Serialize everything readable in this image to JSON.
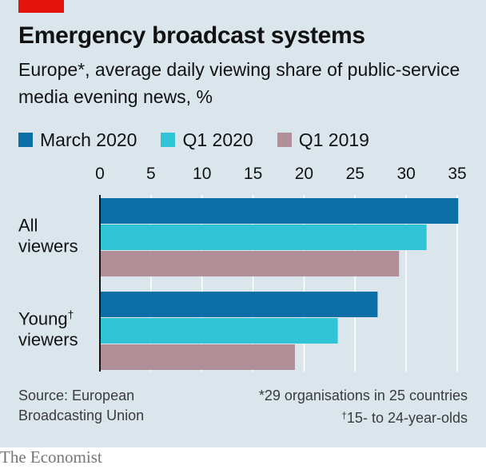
{
  "header": {
    "title": "Emergency broadcast systems",
    "subtitle": "Europe*, average daily viewing share of public-service media evening news, %"
  },
  "colors": {
    "background": "#dbe6ec",
    "accent_tag": "#e3120b",
    "gridline": "#ffffff",
    "baseline": "#121212"
  },
  "chart_data": {
    "type": "bar",
    "orientation": "horizontal",
    "categories": [
      "All viewers",
      "Young viewers"
    ],
    "category_marks": [
      "",
      "†"
    ],
    "series": [
      {
        "name": "March 2020",
        "color": "#0b6ea6",
        "values": [
          35.1,
          27.2
        ]
      },
      {
        "name": "Q1 2020",
        "color": "#31c4d6",
        "values": [
          32.0,
          23.3
        ]
      },
      {
        "name": "Q1 2019",
        "color": "#b08f99",
        "values": [
          29.3,
          19.1
        ]
      }
    ],
    "xlim": [
      0,
      35
    ],
    "xticks": [
      0,
      5,
      10,
      15,
      20,
      25,
      30,
      35
    ],
    "axis_position": "top",
    "grid": true,
    "legend_position": "top-left"
  },
  "footer": {
    "source": "Source: European Broadcasting Union",
    "source_line1": "Source: European",
    "source_line2": "Broadcasting Union",
    "footnote1": "*29 organisations in 25 countries",
    "footnote2_mark": "†",
    "footnote2_text": "15- to 24-year-olds",
    "brand": "The Economist"
  }
}
